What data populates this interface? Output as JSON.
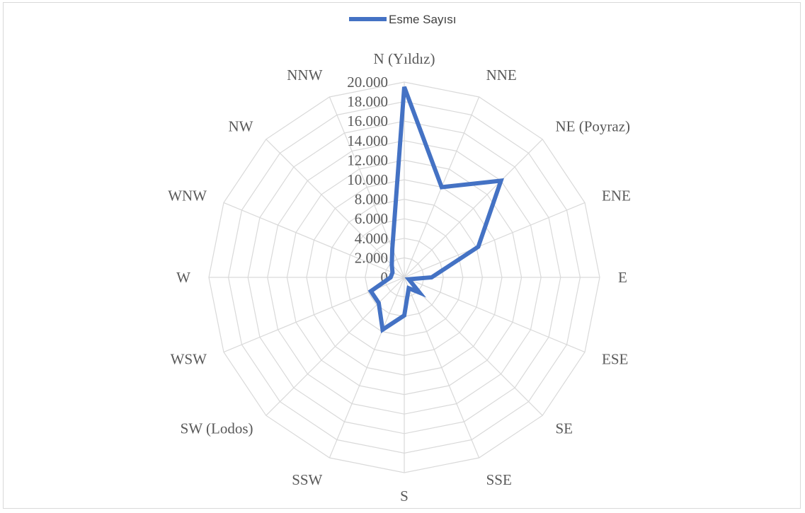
{
  "chart_data": {
    "type": "radar",
    "categories": [
      "N (Yıldız)",
      "NNE",
      "NE (Poyraz)",
      "ENE",
      "E",
      "ESE",
      "SE",
      "SSE",
      "S",
      "SSW",
      "SW (Lodos)",
      "WSW",
      "W",
      "WNW",
      "NW",
      "NNW"
    ],
    "series": [
      {
        "name": "Esme Sayısı",
        "color": "#4472c4",
        "values": [
          19500,
          10000,
          14000,
          8200,
          2800,
          500,
          2200,
          1200,
          3900,
          5800,
          3700,
          3700,
          1400,
          1300,
          1800,
          3200
        ]
      }
    ],
    "ticks": [
      "0",
      "2.000",
      "4.000",
      "6.000",
      "8.000",
      "10.000",
      "12.000",
      "14.000",
      "16.000",
      "18.000",
      "20.000"
    ],
    "rlim": [
      0,
      20000
    ],
    "legend": "top",
    "grid": true,
    "grid_color": "#d9d9d9"
  }
}
